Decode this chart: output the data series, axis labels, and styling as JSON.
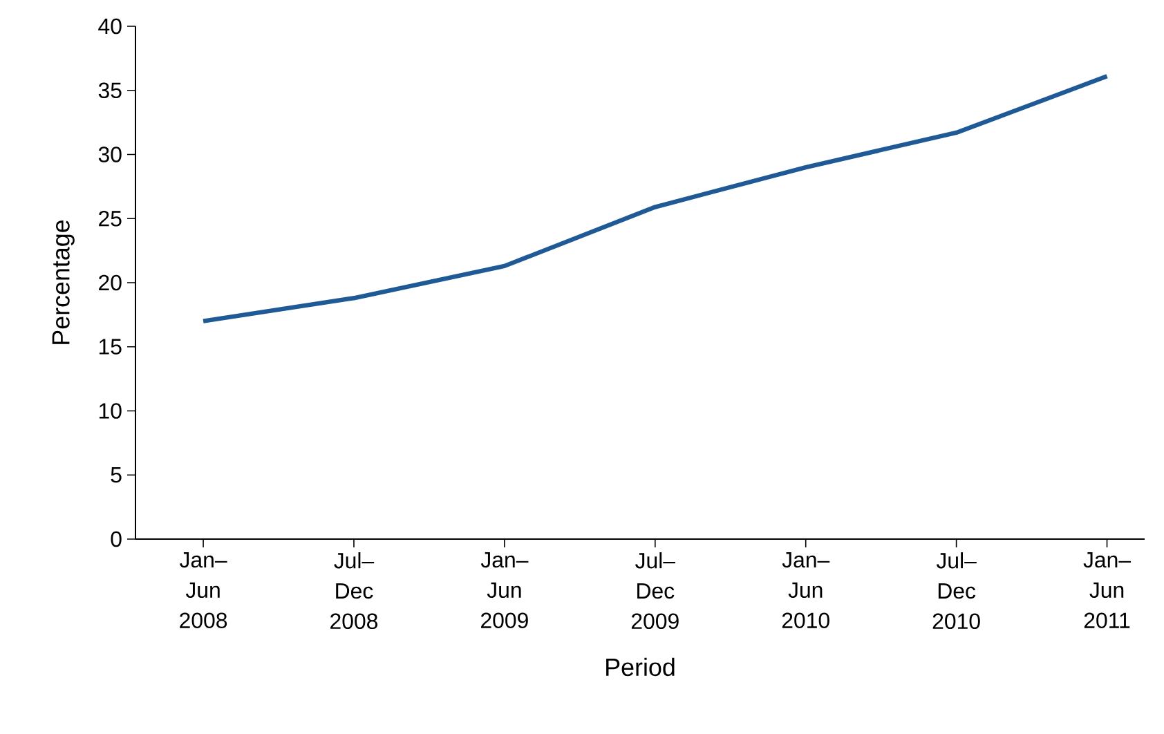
{
  "chart_data": {
    "type": "line",
    "xlabel": "Period",
    "ylabel": "Percentage",
    "categories": [
      "Jan– Jun 2008",
      "Jul– Dec 2008",
      "Jan– Jun 2009",
      "Jul– Dec 2009",
      "Jan– Jun 2010",
      "Jul– Dec 2010",
      "Jan– Jun 2011"
    ],
    "series": [
      {
        "color": "#1f5a96",
        "values": [
          17.0,
          18.8,
          21.3,
          25.9,
          29.0,
          31.7,
          36.1
        ]
      }
    ],
    "ylim": [
      0,
      40
    ],
    "yticks": [
      0,
      5,
      10,
      15,
      20,
      25,
      30,
      35,
      40
    ],
    "marker": "none",
    "line_style": "solid"
  }
}
